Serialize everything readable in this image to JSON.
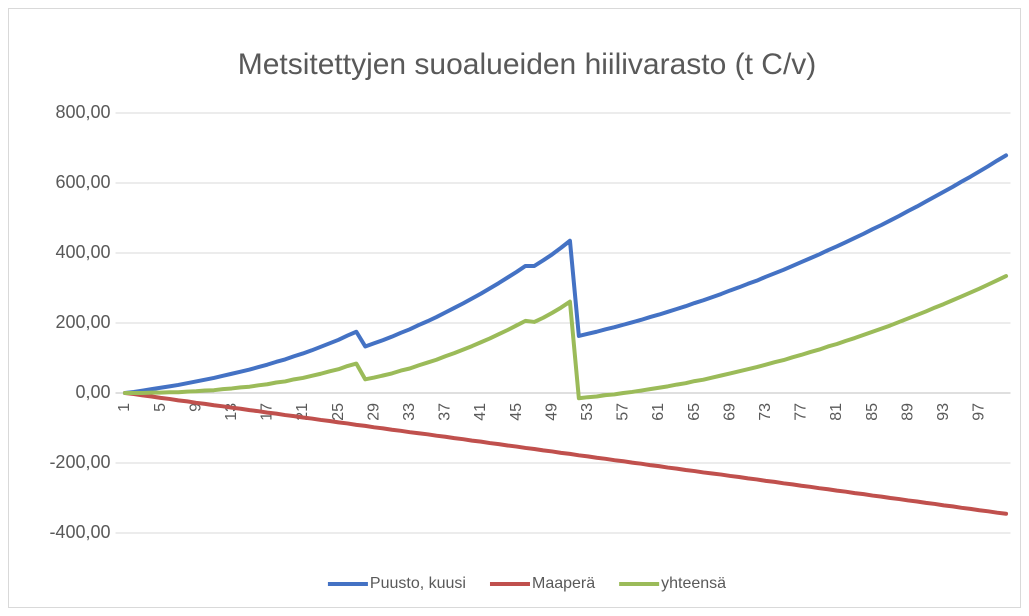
{
  "chart_data": {
    "type": "line",
    "title": "Metsitettyjen suoalueiden hiilivarasto (t C/v)",
    "categories": [
      1,
      null,
      null,
      null,
      5,
      null,
      null,
      null,
      9,
      null,
      null,
      null,
      13,
      null,
      null,
      null,
      17,
      null,
      null,
      null,
      21,
      null,
      null,
      null,
      25,
      null,
      null,
      null,
      29,
      null,
      null,
      null,
      33,
      null,
      null,
      null,
      37,
      null,
      null,
      null,
      41,
      null,
      null,
      null,
      45,
      null,
      null,
      null,
      49,
      null,
      null,
      null,
      53,
      null,
      null,
      null,
      57,
      null,
      null,
      null,
      61,
      null,
      null,
      null,
      65,
      null,
      null,
      null,
      69,
      null,
      null,
      null,
      73,
      null,
      null,
      null,
      77,
      null,
      null,
      null,
      81,
      null,
      null,
      null,
      85,
      null,
      null,
      null,
      89,
      null,
      null,
      null,
      93,
      null,
      null,
      null,
      97,
      null,
      null,
      null
    ],
    "series": [
      {
        "name": "Puusto, kuusi",
        "color": "#4472c4",
        "values": [
          0,
          3,
          7,
          11,
          15,
          19,
          23,
          28,
          33,
          38,
          43,
          49,
          55,
          61,
          67,
          74,
          81,
          89,
          96,
          105,
          113,
          122,
          132,
          142,
          152,
          164,
          175,
          133,
          142,
          151,
          161,
          172,
          182,
          194,
          205,
          217,
          230,
          243,
          256,
          270,
          284,
          299,
          314,
          330,
          346,
          363,
          363,
          379,
          396,
          415,
          435,
          163,
          169,
          175,
          182,
          188,
          195,
          202,
          209,
          217,
          224,
          232,
          240,
          248,
          257,
          265,
          274,
          283,
          293,
          302,
          312,
          321,
          332,
          342,
          352,
          363,
          374,
          385,
          396,
          408,
          419,
          431,
          443,
          455,
          468,
          480,
          493,
          506,
          520,
          533,
          547,
          561,
          575,
          589,
          604,
          618,
          633,
          648,
          664,
          679
        ]
      },
      {
        "name": "Maaperä",
        "color": "#c0504d",
        "values": [
          0,
          -3,
          -7,
          -10,
          -14,
          -17,
          -21,
          -24,
          -28,
          -31,
          -35,
          -38,
          -42,
          -45,
          -49,
          -52,
          -56,
          -59,
          -63,
          -66,
          -70,
          -73,
          -77,
          -80,
          -84,
          -87,
          -91,
          -94,
          -98,
          -101,
          -105,
          -108,
          -112,
          -115,
          -118,
          -122,
          -125,
          -129,
          -132,
          -136,
          -139,
          -143,
          -146,
          -150,
          -153,
          -157,
          -160,
          -164,
          -167,
          -171,
          -174,
          -178,
          -181,
          -185,
          -188,
          -192,
          -195,
          -199,
          -202,
          -206,
          -209,
          -213,
          -216,
          -220,
          -223,
          -227,
          -230,
          -233,
          -237,
          -240,
          -244,
          -247,
          -251,
          -254,
          -258,
          -261,
          -265,
          -268,
          -272,
          -275,
          -279,
          -282,
          -286,
          -289,
          -293,
          -296,
          -300,
          -303,
          -307,
          -310,
          -314,
          -317,
          -321,
          -324,
          -328,
          -331,
          -335,
          -338,
          -342,
          -345
        ]
      },
      {
        "name": "yhteensä",
        "color": "#9bbb59",
        "values": [
          0,
          0,
          0,
          1,
          1,
          2,
          2,
          4,
          5,
          7,
          8,
          11,
          13,
          16,
          18,
          22,
          25,
          30,
          33,
          39,
          43,
          49,
          55,
          62,
          68,
          77,
          84,
          39,
          44,
          50,
          56,
          64,
          70,
          79,
          87,
          95,
          105,
          114,
          124,
          134,
          145,
          156,
          168,
          180,
          193,
          206,
          203,
          215,
          229,
          244,
          261,
          -15,
          -12,
          -10,
          -6,
          -4,
          0,
          3,
          7,
          11,
          15,
          19,
          24,
          28,
          34,
          38,
          44,
          50,
          56,
          62,
          68,
          74,
          81,
          88,
          94,
          102,
          109,
          117,
          124,
          133,
          140,
          149,
          157,
          166,
          175,
          184,
          193,
          203,
          213,
          223,
          233,
          244,
          254,
          265,
          276,
          287,
          298,
          310,
          322,
          334
        ]
      }
    ],
    "ylim": [
      -400,
      800
    ],
    "yticks": [
      {
        "value": -400,
        "label": "-400,00"
      },
      {
        "value": -200,
        "label": "-200,00"
      },
      {
        "value": 0,
        "label": "0,00"
      },
      {
        "value": 200,
        "label": "200,00"
      },
      {
        "value": 400,
        "label": "400,00"
      },
      {
        "value": 600,
        "label": "600,00"
      },
      {
        "value": 800,
        "label": "800,00"
      }
    ],
    "grid": true,
    "legend": "bottom"
  }
}
